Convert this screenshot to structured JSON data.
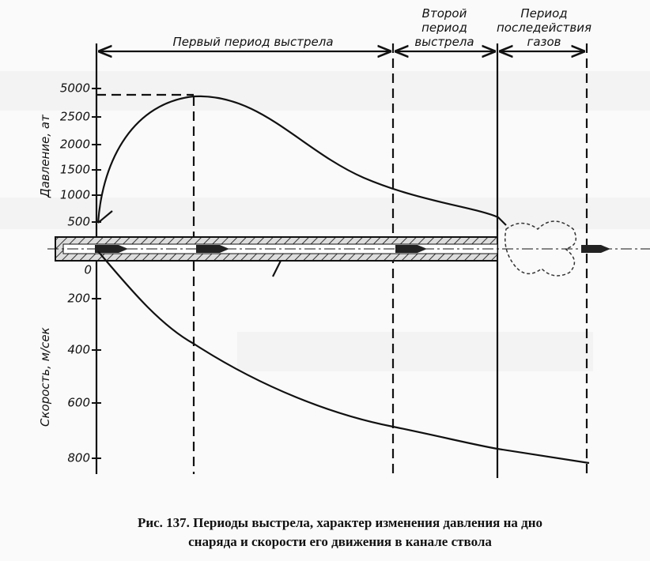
{
  "periods": [
    {
      "lines": [
        "Первый период выстрела"
      ]
    },
    {
      "lines": [
        "Второй",
        "период",
        "выстрела"
      ]
    },
    {
      "lines": [
        "Период",
        "последействия",
        "газов"
      ]
    }
  ],
  "pressure_axis": {
    "label": "Давление, ат",
    "ticks": [
      "5000",
      "2500",
      "2000",
      "1500",
      "1000",
      "500"
    ]
  },
  "zero": "0",
  "velocity_axis": {
    "label": "Скорость, м/сек",
    "ticks": [
      "200",
      "400",
      "600",
      "800"
    ]
  },
  "caption": {
    "lines": [
      "Рис. 137. Периоды выстрела, характер изменения давления на дно",
      "снаряда и скорости его движения в канале ствола"
    ]
  }
}
